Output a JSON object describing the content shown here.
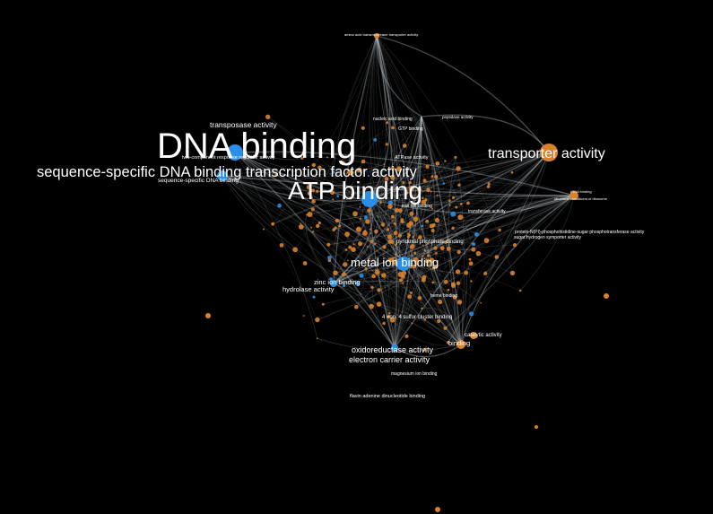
{
  "colors": {
    "background": "#000000",
    "edge": "#c8d4dc",
    "node_orange": "#d9822b",
    "node_blue": "#2a8fe8",
    "label": "#ffffff"
  },
  "labels": {
    "dna_binding": "DNA binding",
    "atp_binding": "ATP binding",
    "seq_specific_tf": "sequence-specific DNA binding transcription factor activity",
    "transporter_activity": "transporter activity",
    "metal_ion_binding": "metal ion binding",
    "transposase_activity": "transposase activity",
    "two_component": "two-component response regulator activity",
    "seq_specific_dna_binding": "sequence-specific DNA binding",
    "zinc_ion_binding": "zinc ion binding",
    "hydrolase_activity": "hydrolase activity",
    "oxidoreductase_activity": "oxidoreductase activity",
    "electron_carrier_activity": "electron carrier activity",
    "catalytic_activity": "catalytic activity",
    "binding": "binding",
    "fe_s_cluster_binding": "4 iron, 4 sulfur cluster binding",
    "fad_binding": "flavin adenine dinucleotide binding",
    "pyridoxal_phosphate": "pyridoxal phosphate binding",
    "transferase_activity": "transferase activity",
    "atpase_activity": "ATPase activity",
    "nucleic_acid_binding": "nucleic acid binding",
    "gtp_binding": "GTP binding",
    "peptidase_activity": "peptidase activity",
    "amino_acid_transporter": "amino acid transmembrane transporter activity",
    "protein_histidine_pts": "protein-N(PI)-phosphohistidine-sugar phosphotransferase activity",
    "sugar_hydrogen_symporter": "sugar:hydrogen symporter activity",
    "rrna_binding": "rRNA binding",
    "structural_constituent_ribosome": "structural constituent of ribosome",
    "heme_binding": "heme binding",
    "magnesium_ion_binding": "magnesium ion binding",
    "iron_ion_binding": "iron ion binding"
  }
}
